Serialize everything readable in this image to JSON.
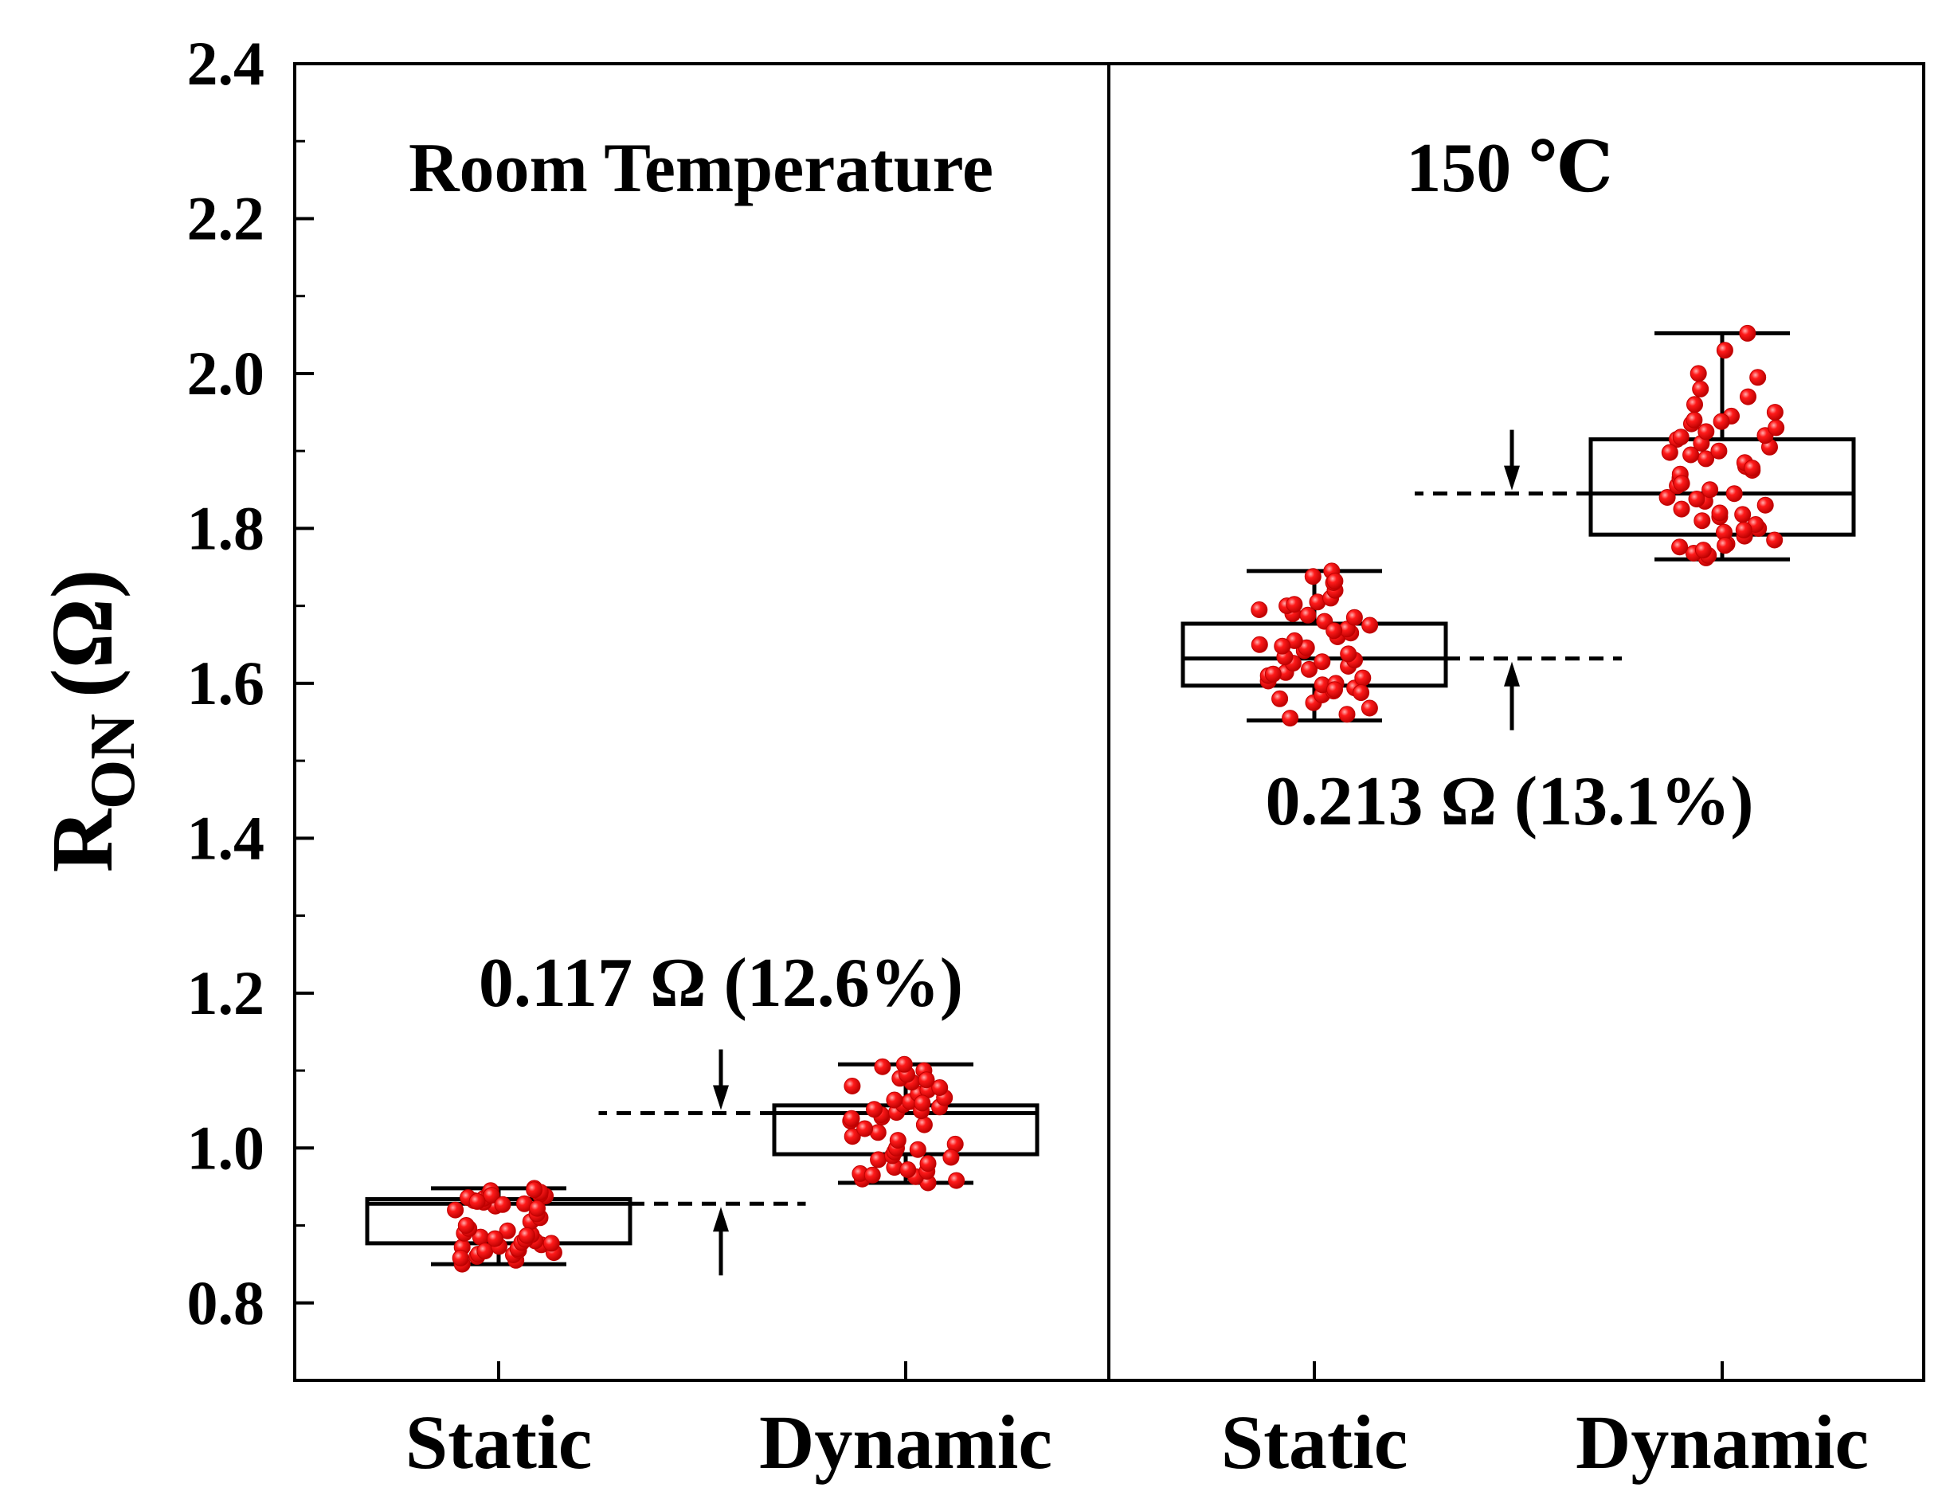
{
  "chart_data": {
    "type": "box",
    "ylabel_main": "R",
    "ylabel_sub": "ON",
    "ylabel_unit": "(Ω)",
    "ylim": [
      0.7,
      2.4
    ],
    "yticks": [
      "0.8",
      "1.0",
      "1.2",
      "1.4",
      "1.6",
      "1.8",
      "2.0",
      "2.2",
      "2.4"
    ],
    "ytick_values": [
      0.8,
      1.0,
      1.2,
      1.4,
      1.6,
      1.8,
      2.0,
      2.2,
      2.4
    ],
    "panels": [
      {
        "title": "Room Temperature",
        "annotation": "0.117 Ω (12.6%)",
        "boxes": [
          {
            "label": "Static",
            "whisker_low": 0.85,
            "q1": 0.877,
            "median": 0.928,
            "q3": 0.934,
            "whisker_high": 0.948,
            "points": [
              0.855,
              0.86,
              0.862,
              0.865,
              0.868,
              0.87,
              0.872,
              0.875,
              0.878,
              0.88,
              0.882,
              0.885,
              0.888,
              0.89,
              0.893,
              0.896,
              0.9,
              0.905,
              0.91,
              0.915,
              0.92,
              0.925,
              0.928,
              0.93,
              0.932,
              0.935,
              0.938,
              0.94,
              0.942,
              0.945,
              0.948,
              0.85,
              0.858,
              0.863,
              0.867,
              0.873,
              0.877,
              0.883,
              0.887,
              0.936,
              0.939,
              0.943,
              0.946,
              0.931,
              0.927,
              0.922
            ]
          },
          {
            "label": "Dynamic",
            "whisker_low": 0.955,
            "q1": 0.992,
            "median": 1.045,
            "q3": 1.055,
            "whisker_high": 1.108,
            "points": [
              0.955,
              0.96,
              0.963,
              0.967,
              0.97,
              0.975,
              0.98,
              0.985,
              0.99,
              0.995,
              1.0,
              1.005,
              1.01,
              1.015,
              1.02,
              1.025,
              1.03,
              1.035,
              1.04,
              1.043,
              1.046,
              1.05,
              1.053,
              1.056,
              1.06,
              1.065,
              1.07,
              1.075,
              1.08,
              1.085,
              1.09,
              1.095,
              1.1,
              1.105,
              1.108,
              0.958,
              0.965,
              0.972,
              0.988,
              0.998,
              1.038,
              1.048,
              1.058,
              1.062,
              1.078,
              1.088
            ]
          }
        ]
      },
      {
        "title": "150 ℃",
        "annotation": "0.213 Ω (13.1%)",
        "boxes": [
          {
            "label": "Static",
            "whisker_low": 1.552,
            "q1": 1.597,
            "median": 1.632,
            "q3": 1.677,
            "whisker_high": 1.745,
            "points": [
              1.555,
              1.56,
              1.568,
              1.575,
              1.58,
              1.585,
              1.59,
              1.594,
              1.598,
              1.6,
              1.603,
              1.607,
              1.61,
              1.614,
              1.618,
              1.622,
              1.626,
              1.63,
              1.634,
              1.638,
              1.642,
              1.646,
              1.65,
              1.655,
              1.66,
              1.665,
              1.67,
              1.675,
              1.68,
              1.685,
              1.69,
              1.695,
              1.7,
              1.705,
              1.71,
              1.72,
              1.73,
              1.738,
              1.745,
              1.588,
              1.592,
              1.612,
              1.628,
              1.648,
              1.668,
              1.688,
              1.702,
              1.732
            ]
          },
          {
            "label": "Dynamic",
            "whisker_low": 1.76,
            "q1": 1.792,
            "median": 1.845,
            "q3": 1.915,
            "whisker_high": 2.052,
            "points": [
              1.762,
              1.765,
              1.768,
              1.772,
              1.776,
              1.78,
              1.785,
              1.79,
              1.795,
              1.8,
              1.805,
              1.81,
              1.815,
              1.82,
              1.825,
              1.83,
              1.835,
              1.84,
              1.845,
              1.85,
              1.855,
              1.86,
              1.865,
              1.87,
              1.875,
              1.88,
              1.885,
              1.89,
              1.895,
              1.9,
              1.905,
              1.91,
              1.915,
              1.92,
              1.925,
              1.93,
              1.935,
              1.94,
              1.945,
              1.95,
              1.96,
              1.97,
              1.98,
              1.995,
              2.0,
              2.03,
              2.052,
              1.778,
              1.798,
              1.818,
              1.838,
              1.858,
              1.878,
              1.898,
              1.918,
              1.938
            ]
          }
        ]
      }
    ],
    "colors": {
      "points": "#ff0000",
      "axis": "#000000"
    }
  }
}
